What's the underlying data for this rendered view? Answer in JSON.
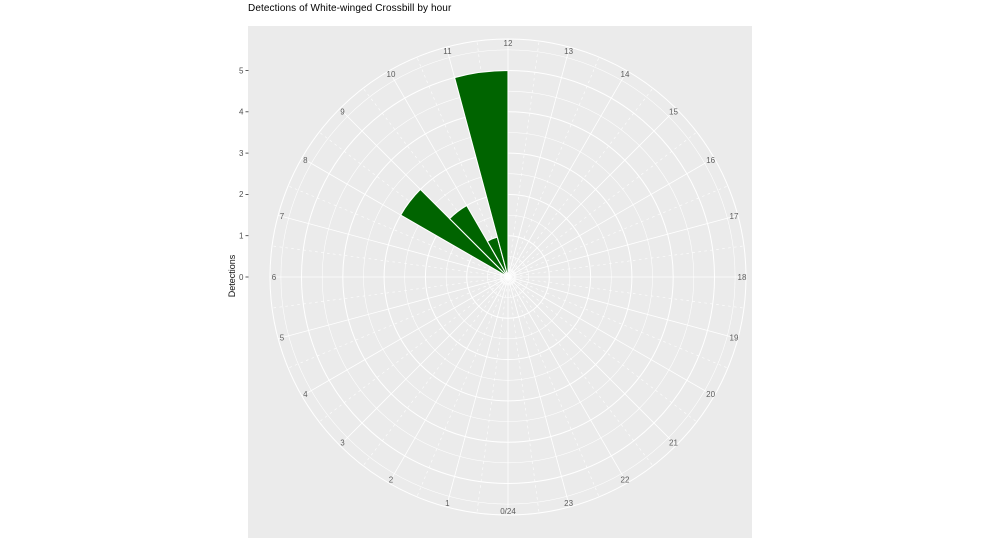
{
  "chart_data": {
    "type": "polar_bar",
    "title": "Detections of White-winged Crossbill by hour",
    "ylabel": "Detections",
    "theta": "hour of day (24-hour clock, 0/24 at bottom, 12 at top, clockwise)",
    "categories": [
      0,
      1,
      2,
      3,
      4,
      5,
      6,
      7,
      8,
      9,
      10,
      11,
      12,
      13,
      14,
      15,
      16,
      17,
      18,
      19,
      20,
      21,
      22,
      23
    ],
    "values": [
      0,
      0,
      0,
      0,
      0,
      0,
      0,
      0,
      3,
      2,
      1,
      5,
      0,
      0,
      0,
      0,
      0,
      0,
      0,
      0,
      0,
      0,
      0,
      0
    ],
    "bars": [
      {
        "hour_start": 8,
        "hour_end": 9,
        "value": 3
      },
      {
        "hour_start": 9,
        "hour_end": 10,
        "value": 2
      },
      {
        "hour_start": 10,
        "hour_end": 11,
        "value": 1
      },
      {
        "hour_start": 11,
        "hour_end": 12,
        "value": 5
      }
    ],
    "ylim": [
      0,
      5
    ],
    "yticks": [
      "0",
      "1",
      "2",
      "3",
      "4",
      "5"
    ],
    "hour_labels": [
      "0/24",
      "1",
      "2",
      "3",
      "4",
      "5",
      "6",
      "7",
      "8",
      "9",
      "10",
      "11",
      "12",
      "13",
      "14",
      "15",
      "16",
      "17",
      "18",
      "19",
      "20",
      "21",
      "22",
      "23"
    ],
    "grid": {
      "major_rings": [
        1,
        2,
        3,
        4,
        5
      ],
      "minor_rings": [
        0.5,
        1.5,
        2.5,
        3.5,
        4.5,
        5.5
      ],
      "major_spokes_every_hour": true,
      "minor_spokes_every_half_hour": true,
      "style": "white on gray panel, minor spokes dashed"
    },
    "legend": "none",
    "colors": {
      "bar_fill": "#006400",
      "bar_outline": "#FFFFFF",
      "panel_background": "#EBEBEB",
      "grid": "#FFFFFF",
      "axis_text": "#4D4D4D",
      "title_text": "#000000",
      "page_background": "#FFFFFF"
    }
  }
}
